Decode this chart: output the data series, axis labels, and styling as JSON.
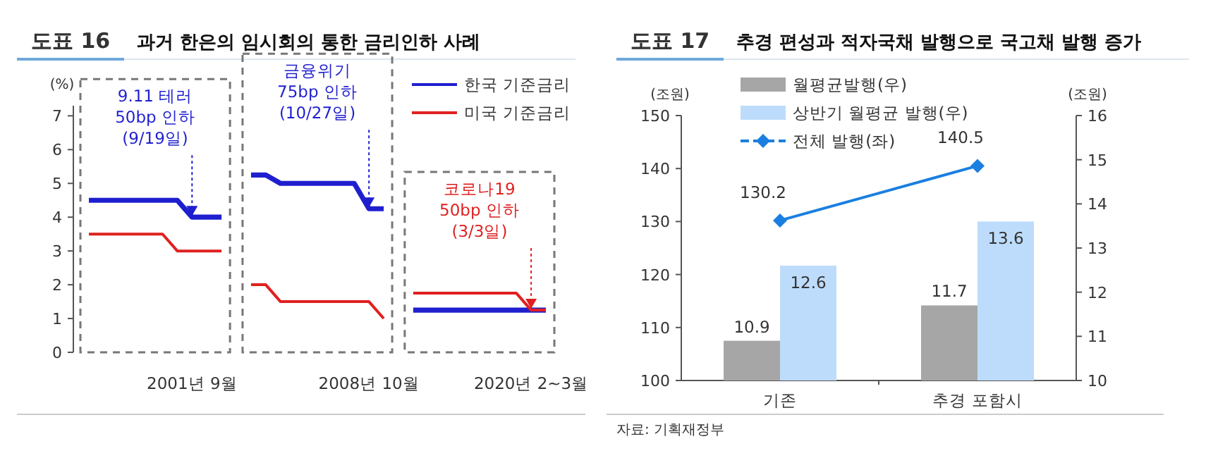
{
  "chart_data": [
    {
      "type": "line",
      "title": "도표 16",
      "subtitle": "과거 한은의 임시회의 통한 금리인하 사례",
      "ylabel": "(%)",
      "categories": [
        null,
        null,
        null,
        null,
        null,
        null,
        null,
        "2001년 9월",
        null,
        null,
        null,
        null,
        null,
        null,
        null,
        null,
        null,
        null,
        null,
        "2008년 10월",
        null,
        null,
        null,
        null,
        null,
        null,
        null,
        null,
        null,
        null,
        "2020년 2~3월",
        null
      ],
      "series": [
        {
          "name": "한국 기준금리",
          "color": "#1f1fd0",
          "values": [
            4.5,
            4.5,
            4.5,
            4.5,
            4.5,
            4.5,
            4.5,
            4.0,
            4.0,
            4.0,
            null,
            5.25,
            5.25,
            5.0,
            5.0,
            5.0,
            5.0,
            5.0,
            5.0,
            4.25,
            4.25,
            null,
            1.25,
            1.25,
            1.25,
            1.25,
            1.25,
            1.25,
            1.25,
            1.25,
            1.25,
            1.25
          ]
        },
        {
          "name": "미국 기준금리",
          "color": "#e02020",
          "values": [
            3.5,
            3.5,
            3.5,
            3.5,
            3.5,
            3.5,
            3.0,
            3.0,
            3.0,
            3.0,
            null,
            2.0,
            2.0,
            1.5,
            1.5,
            1.5,
            1.5,
            1.5,
            1.5,
            1.5,
            1.0,
            null,
            1.75,
            1.75,
            1.75,
            1.75,
            1.75,
            1.75,
            1.75,
            1.75,
            1.25,
            1.25
          ]
        }
      ],
      "annotations": [
        {
          "text": "9.11 테러\n50bp 인하\n(9/19일)",
          "x": "2001년 9월",
          "y": 4.0
        },
        {
          "text": "금융위기\n75bp 인하\n(10/27일)",
          "x": "2008년 10월",
          "y": 4.25
        },
        {
          "text": "코로나19\n50bp 인하\n(3/3일)",
          "x": "2020년 2~3월",
          "y": 1.25
        }
      ],
      "ylim": [
        0,
        7.3
      ],
      "yticks": [
        0,
        1,
        2,
        3,
        4,
        5,
        6,
        7
      ],
      "grid": false,
      "legend": "top right"
    },
    {
      "type": "bar",
      "title": "도표 17",
      "subtitle": "추경 편성과 적자국채 발행으로 국고채 발행 증가",
      "ylabel": "(조원)",
      "y2label": "(조원)",
      "categories": [
        "기존",
        "추경 포함시"
      ],
      "series": [
        {
          "name": "월평균발행(우)",
          "color": "#a6a6a6",
          "values": [
            10.9,
            11.7
          ],
          "axis": "y2"
        },
        {
          "name": "상반기 월평균 발행(우)",
          "color": "#bddcfb",
          "values": [
            12.6,
            13.6
          ],
          "axis": "y2"
        },
        {
          "name": "전체 발행(좌)",
          "type": "line",
          "color": "#1a7fe0",
          "values": [
            130.2,
            140.5
          ],
          "marker": "diamond"
        }
      ],
      "annotations": [
        "자료: 기획재정부"
      ],
      "ylim": [
        100,
        150
      ],
      "yticks": [
        100,
        110,
        120,
        130,
        140,
        150
      ],
      "y2lim": [
        10,
        16
      ],
      "y2ticks": [
        10,
        11,
        12,
        13,
        14,
        15,
        16
      ],
      "data_labels": true,
      "grid": false,
      "legend": "top left"
    }
  ]
}
